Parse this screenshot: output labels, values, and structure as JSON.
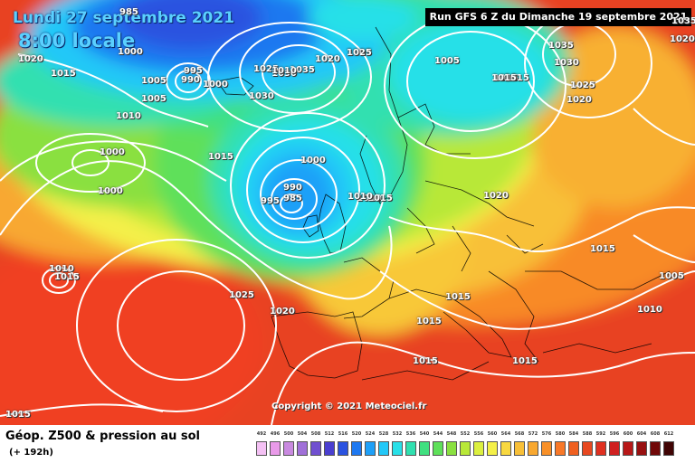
{
  "header": {
    "date_line": "Lundi 27 septembre 2021",
    "time_line": "8:00 locale",
    "run_info": "Run GFS 6 Z du Dimanche 19 septembre 2021"
  },
  "map": {
    "copyright": "Copyright © 2021 Meteociel.fr",
    "pressure_labels": [
      "985",
      "1000",
      "1020",
      "1015",
      "1000",
      "995",
      "990",
      "1000",
      "1005",
      "1005",
      "1010",
      "1025",
      "1035",
      "1030",
      "1025",
      "1015",
      "1030",
      "1035",
      "1020",
      "1010",
      "1010",
      "1005",
      "1015",
      "1020",
      "1015",
      "1000",
      "990",
      "985",
      "995",
      "1000",
      "1015",
      "1015",
      "1010",
      "1005",
      "1015",
      "1015",
      "1015",
      "1020",
      "1025",
      "1020",
      "1015",
      "1015",
      "1015",
      "1010",
      "1005",
      "1015",
      "1035",
      "1020",
      "1030",
      "1025",
      "1010"
    ]
  },
  "footer": {
    "title": "Géop. Z500 & pression au sol",
    "forecast_hours": "(+ 192h)"
  },
  "scale": {
    "ticks": [
      "492",
      "496",
      "500",
      "504",
      "508",
      "512",
      "516",
      "520",
      "524",
      "528",
      "532",
      "536",
      "540",
      "544",
      "548",
      "552",
      "556",
      "560",
      "564",
      "568",
      "572",
      "576",
      "580",
      "584",
      "588",
      "592",
      "596",
      "600",
      "604",
      "608",
      "612"
    ],
    "colors": [
      "#f4c1f4",
      "#e99ae9",
      "#c98ae0",
      "#a070d8",
      "#7050d0",
      "#4a3fd0",
      "#2a52e0",
      "#1e78f0",
      "#1ea0f8",
      "#22c8f8",
      "#28e0e8",
      "#30e0b0",
      "#40e080",
      "#5ee05a",
      "#8ae040",
      "#b8e838",
      "#dcf040",
      "#f4f048",
      "#f8d840",
      "#f8c038",
      "#f8a830",
      "#f89028",
      "#f87828",
      "#f06020",
      "#e84820",
      "#e03020",
      "#d02020",
      "#b81818",
      "#981010",
      "#700808",
      "#400404"
    ]
  }
}
